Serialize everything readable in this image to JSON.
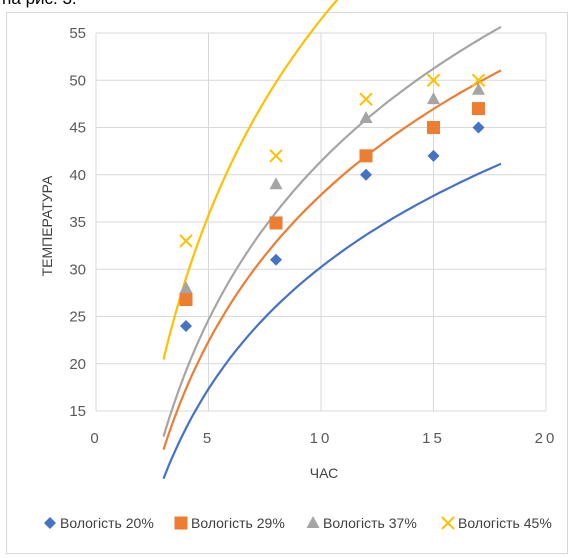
{
  "page": {
    "top_fragment_text": "на рис. 3."
  },
  "chart_data": {
    "type": "scatter",
    "title": "",
    "xlabel": "ЧАС",
    "ylabel": "ТЕМПЕРАТУРА",
    "xlim": [
      0,
      20
    ],
    "ylim": [
      15,
      55
    ],
    "xticks": [
      0,
      5,
      10,
      15,
      20
    ],
    "xtick_labels": [
      "0",
      "5",
      "10",
      "15",
      "20"
    ],
    "yticks": [
      15,
      20,
      25,
      30,
      35,
      40,
      45,
      50,
      55
    ],
    "ytick_labels": [
      "15",
      "20",
      "25",
      "30",
      "35",
      "40",
      "45",
      "50",
      "55"
    ],
    "grid": true,
    "legend_position": "bottom",
    "trendline": "logarithmic",
    "trend_x_range": [
      3,
      18
    ],
    "series": [
      {
        "name": "Вологість 20%",
        "marker": "diamond",
        "color": "#4472c4",
        "x": [
          4,
          8,
          12,
          15,
          17
        ],
        "y": [
          24,
          31,
          40,
          42,
          45
        ],
        "trend": {
          "a": 18.6,
          "b": 12.6
        }
      },
      {
        "name": "Вологість 29%",
        "marker": "square",
        "color": "#ed7d31",
        "x": [
          4,
          8,
          12,
          15,
          17
        ],
        "y": [
          26.8,
          34.9,
          42,
          45,
          47
        ],
        "trend": {
          "a": 22.4,
          "b": 13.7
        }
      },
      {
        "name": "Вологість 37%",
        "marker": "triangle",
        "color": "#a5a5a5",
        "x": [
          4,
          8,
          12,
          15,
          17
        ],
        "y": [
          28,
          39,
          46,
          48,
          49
        ],
        "trend": {
          "a": 24.2,
          "b": 14.3
        }
      },
      {
        "name": "Вологість 45%",
        "marker": "x",
        "color": "#ffc000",
        "x": [
          4,
          8,
          12,
          15,
          17
        ],
        "y": [
          33,
          42,
          48,
          50,
          50
        ],
        "trend": {
          "a": 29.9,
          "b": 12.4
        }
      }
    ]
  }
}
